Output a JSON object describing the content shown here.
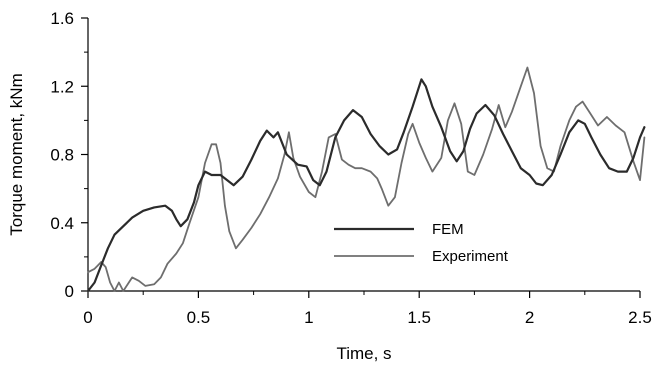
{
  "chart_data": {
    "type": "line",
    "title": "",
    "xlabel": "Time, s",
    "ylabel": "Torque moment, kNm",
    "xlim": [
      0,
      2.5
    ],
    "ylim": [
      0,
      1.6
    ],
    "x_ticks": [
      0,
      0.5,
      1,
      1.5,
      2,
      2.5
    ],
    "x_tick_labels": [
      "0",
      "0.5",
      "1",
      "1.5",
      "2",
      "2.5"
    ],
    "y_ticks": [
      0,
      0.4,
      0.8,
      1.2,
      1.6
    ],
    "y_tick_labels": [
      "0",
      "0.4",
      "0.8",
      "1.2",
      "1.6"
    ],
    "grid": false,
    "legend_position": "center-right",
    "series": [
      {
        "name": "FEM",
        "color": "#2b2b2b",
        "points": [
          [
            0.0,
            0.0
          ],
          [
            0.03,
            0.05
          ],
          [
            0.06,
            0.15
          ],
          [
            0.09,
            0.25
          ],
          [
            0.12,
            0.33
          ],
          [
            0.16,
            0.38
          ],
          [
            0.2,
            0.43
          ],
          [
            0.25,
            0.47
          ],
          [
            0.3,
            0.49
          ],
          [
            0.35,
            0.5
          ],
          [
            0.38,
            0.47
          ],
          [
            0.4,
            0.42
          ],
          [
            0.42,
            0.38
          ],
          [
            0.45,
            0.42
          ],
          [
            0.48,
            0.52
          ],
          [
            0.5,
            0.62
          ],
          [
            0.53,
            0.7
          ],
          [
            0.56,
            0.68
          ],
          [
            0.6,
            0.68
          ],
          [
            0.63,
            0.65
          ],
          [
            0.66,
            0.62
          ],
          [
            0.7,
            0.67
          ],
          [
            0.74,
            0.77
          ],
          [
            0.78,
            0.88
          ],
          [
            0.81,
            0.94
          ],
          [
            0.84,
            0.9
          ],
          [
            0.86,
            0.93
          ],
          [
            0.9,
            0.8
          ],
          [
            0.95,
            0.74
          ],
          [
            0.99,
            0.73
          ],
          [
            1.02,
            0.65
          ],
          [
            1.05,
            0.62
          ],
          [
            1.08,
            0.7
          ],
          [
            1.12,
            0.9
          ],
          [
            1.16,
            1.0
          ],
          [
            1.2,
            1.06
          ],
          [
            1.24,
            1.02
          ],
          [
            1.28,
            0.92
          ],
          [
            1.32,
            0.85
          ],
          [
            1.36,
            0.8
          ],
          [
            1.4,
            0.83
          ],
          [
            1.43,
            0.93
          ],
          [
            1.47,
            1.08
          ],
          [
            1.51,
            1.24
          ],
          [
            1.53,
            1.2
          ],
          [
            1.56,
            1.08
          ],
          [
            1.6,
            0.96
          ],
          [
            1.64,
            0.82
          ],
          [
            1.67,
            0.76
          ],
          [
            1.7,
            0.82
          ],
          [
            1.73,
            0.95
          ],
          [
            1.76,
            1.04
          ],
          [
            1.8,
            1.09
          ],
          [
            1.84,
            1.03
          ],
          [
            1.88,
            0.92
          ],
          [
            1.92,
            0.82
          ],
          [
            1.96,
            0.72
          ],
          [
            2.0,
            0.68
          ],
          [
            2.03,
            0.63
          ],
          [
            2.06,
            0.62
          ],
          [
            2.1,
            0.68
          ],
          [
            2.14,
            0.8
          ],
          [
            2.18,
            0.93
          ],
          [
            2.22,
            1.0
          ],
          [
            2.25,
            0.98
          ],
          [
            2.28,
            0.9
          ],
          [
            2.32,
            0.8
          ],
          [
            2.36,
            0.72
          ],
          [
            2.4,
            0.7
          ],
          [
            2.44,
            0.7
          ],
          [
            2.47,
            0.78
          ],
          [
            2.5,
            0.9
          ],
          [
            2.52,
            0.96
          ]
        ]
      },
      {
        "name": "Experiment",
        "color": "#6e6e6e",
        "points": [
          [
            0.0,
            0.11
          ],
          [
            0.03,
            0.13
          ],
          [
            0.06,
            0.17
          ],
          [
            0.08,
            0.14
          ],
          [
            0.1,
            0.05
          ],
          [
            0.12,
            0.0
          ],
          [
            0.14,
            0.05
          ],
          [
            0.16,
            0.0
          ],
          [
            0.18,
            0.04
          ],
          [
            0.2,
            0.08
          ],
          [
            0.23,
            0.06
          ],
          [
            0.26,
            0.03
          ],
          [
            0.3,
            0.04
          ],
          [
            0.33,
            0.08
          ],
          [
            0.36,
            0.16
          ],
          [
            0.4,
            0.22
          ],
          [
            0.43,
            0.28
          ],
          [
            0.46,
            0.4
          ],
          [
            0.5,
            0.55
          ],
          [
            0.53,
            0.75
          ],
          [
            0.56,
            0.86
          ],
          [
            0.58,
            0.86
          ],
          [
            0.6,
            0.75
          ],
          [
            0.62,
            0.5
          ],
          [
            0.64,
            0.35
          ],
          [
            0.67,
            0.25
          ],
          [
            0.7,
            0.3
          ],
          [
            0.74,
            0.37
          ],
          [
            0.78,
            0.45
          ],
          [
            0.82,
            0.55
          ],
          [
            0.86,
            0.66
          ],
          [
            0.89,
            0.8
          ],
          [
            0.91,
            0.93
          ],
          [
            0.93,
            0.78
          ],
          [
            0.96,
            0.67
          ],
          [
            1.0,
            0.58
          ],
          [
            1.03,
            0.55
          ],
          [
            1.06,
            0.7
          ],
          [
            1.09,
            0.9
          ],
          [
            1.12,
            0.92
          ],
          [
            1.15,
            0.77
          ],
          [
            1.18,
            0.74
          ],
          [
            1.21,
            0.72
          ],
          [
            1.24,
            0.72
          ],
          [
            1.28,
            0.7
          ],
          [
            1.31,
            0.66
          ],
          [
            1.33,
            0.6
          ],
          [
            1.36,
            0.5
          ],
          [
            1.39,
            0.55
          ],
          [
            1.42,
            0.75
          ],
          [
            1.45,
            0.92
          ],
          [
            1.47,
            0.98
          ],
          [
            1.5,
            0.87
          ],
          [
            1.53,
            0.78
          ],
          [
            1.56,
            0.7
          ],
          [
            1.6,
            0.78
          ],
          [
            1.63,
            1.0
          ],
          [
            1.66,
            1.1
          ],
          [
            1.69,
            0.98
          ],
          [
            1.72,
            0.7
          ],
          [
            1.75,
            0.68
          ],
          [
            1.79,
            0.8
          ],
          [
            1.83,
            0.95
          ],
          [
            1.86,
            1.09
          ],
          [
            1.89,
            0.96
          ],
          [
            1.92,
            1.05
          ],
          [
            1.96,
            1.2
          ],
          [
            1.99,
            1.31
          ],
          [
            2.02,
            1.16
          ],
          [
            2.05,
            0.85
          ],
          [
            2.08,
            0.72
          ],
          [
            2.11,
            0.7
          ],
          [
            2.14,
            0.85
          ],
          [
            2.18,
            1.0
          ],
          [
            2.21,
            1.08
          ],
          [
            2.24,
            1.11
          ],
          [
            2.27,
            1.05
          ],
          [
            2.31,
            0.97
          ],
          [
            2.35,
            1.02
          ],
          [
            2.39,
            0.97
          ],
          [
            2.43,
            0.93
          ],
          [
            2.47,
            0.76
          ],
          [
            2.5,
            0.65
          ],
          [
            2.52,
            0.9
          ]
        ]
      }
    ]
  }
}
